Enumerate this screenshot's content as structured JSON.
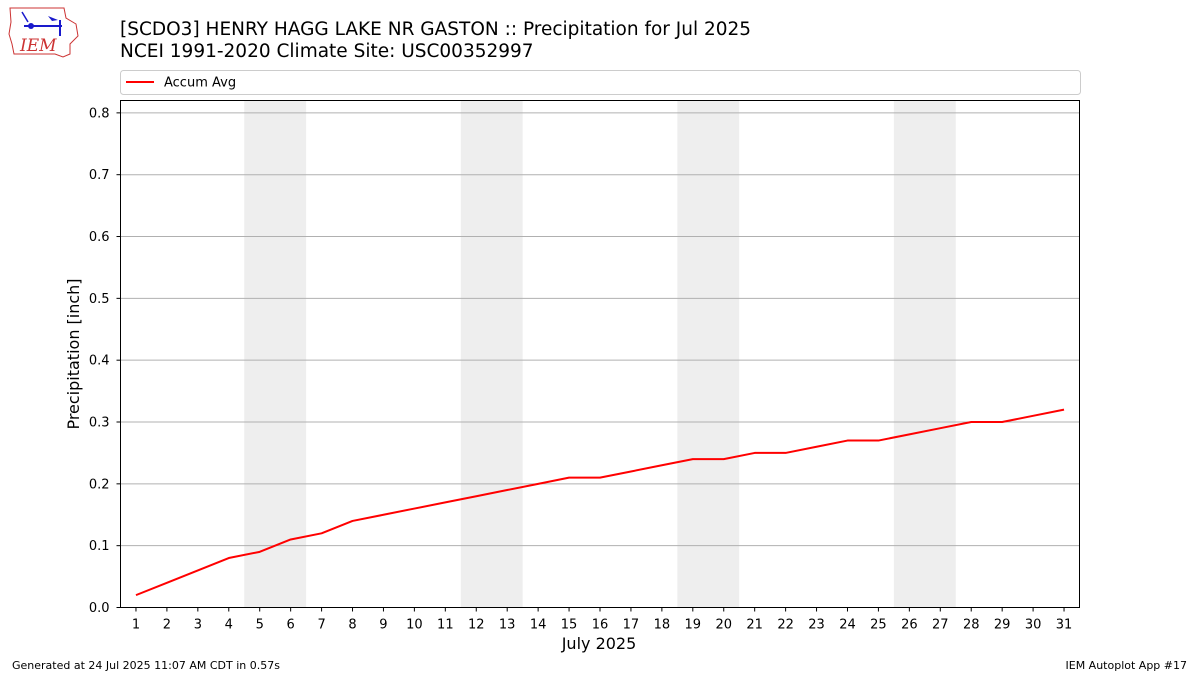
{
  "header": {
    "title_line1": "[SCDO3] HENRY HAGG LAKE NR GASTON :: Precipitation for Jul 2025",
    "title_line2": "NCEI 1991-2020 Climate Site: USC00352997",
    "logo_text": "IEM"
  },
  "footer": {
    "generated": "Generated at 24 Jul 2025 11:07 AM CDT in 0.57s",
    "app": "IEM Autoplot App #17"
  },
  "colors": {
    "series": "#ff0000",
    "weekend_band": "#eeeeee",
    "grid": "#b0b0b0",
    "logo": "#cc3333",
    "logo_icon": "#1a1acc"
  },
  "chart_data": {
    "type": "line",
    "xlabel": "July 2025",
    "ylabel": "Precipitation [inch]",
    "xlim": [
      0.5,
      31.5
    ],
    "ylim": [
      0,
      0.82
    ],
    "x": [
      1,
      2,
      3,
      4,
      5,
      6,
      7,
      8,
      9,
      10,
      11,
      12,
      13,
      14,
      15,
      16,
      17,
      18,
      19,
      20,
      21,
      22,
      23,
      24,
      25,
      26,
      27,
      28,
      29,
      30,
      31
    ],
    "series": [
      {
        "name": "Accum Avg",
        "values": [
          0.02,
          0.04,
          0.06,
          0.08,
          0.09,
          0.11,
          0.12,
          0.14,
          0.15,
          0.16,
          0.17,
          0.18,
          0.19,
          0.2,
          0.21,
          0.21,
          0.22,
          0.23,
          0.24,
          0.24,
          0.25,
          0.25,
          0.26,
          0.27,
          0.27,
          0.28,
          0.29,
          0.3,
          0.3,
          0.31,
          0.32
        ]
      }
    ],
    "x_ticks": [
      "1",
      "2",
      "3",
      "4",
      "5",
      "6",
      "7",
      "8",
      "9",
      "10",
      "11",
      "12",
      "13",
      "14",
      "15",
      "16",
      "17",
      "18",
      "19",
      "20",
      "21",
      "22",
      "23",
      "24",
      "25",
      "26",
      "27",
      "28",
      "29",
      "30",
      "31"
    ],
    "y_ticks": [
      "0.0",
      "0.1",
      "0.2",
      "0.3",
      "0.4",
      "0.5",
      "0.6",
      "0.7",
      "0.8"
    ],
    "weekend_bands": [
      [
        5,
        6
      ],
      [
        12,
        13
      ],
      [
        19,
        20
      ],
      [
        26,
        27
      ]
    ],
    "grid": "horizontal",
    "legend": "top-left"
  }
}
